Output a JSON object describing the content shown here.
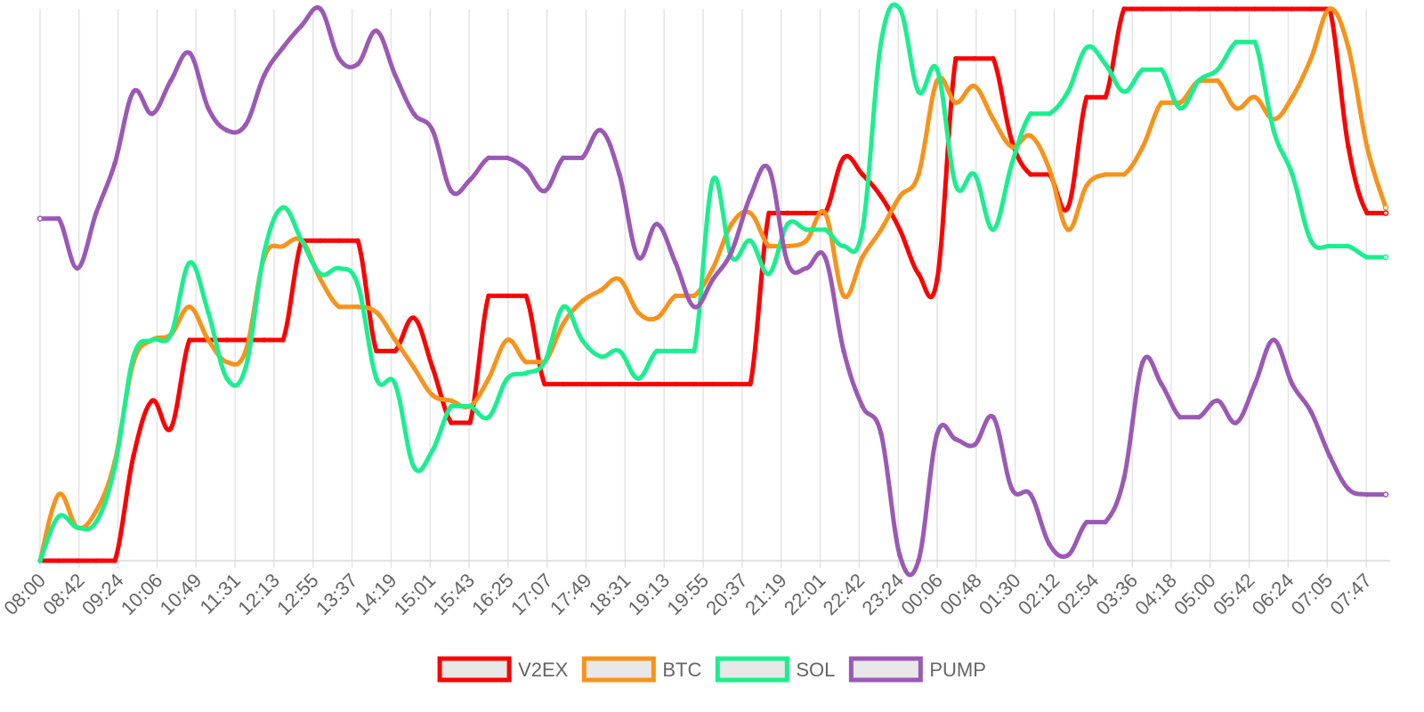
{
  "chart_data": {
    "type": "line",
    "title": "",
    "xlabel": "",
    "ylabel": "",
    "grid": true,
    "y_axis_visible": false,
    "legend_position": "bottom",
    "x_labels_shown": [
      "08:00",
      "08:42",
      "09:24",
      "10:06",
      "10:49",
      "11:31",
      "12:13",
      "12:55",
      "13:37",
      "14:19",
      "15:01",
      "15:43",
      "16:25",
      "17:07",
      "17:49",
      "18:31",
      "19:13",
      "19:55",
      "20:37",
      "21:19",
      "22:01",
      "22:42",
      "23:24",
      "00:06",
      "00:48",
      "01:30",
      "02:12",
      "02:54",
      "03:36",
      "04:18",
      "05:00",
      "05:42",
      "06:24",
      "07:05",
      "07:47"
    ],
    "ylim": [
      0,
      100
    ],
    "series": [
      {
        "name": "V2EX",
        "color": "#ff0000",
        "values": [
          0,
          0,
          0,
          0,
          0,
          19,
          29,
          24,
          40,
          40,
          40,
          40,
          40,
          40,
          58,
          58,
          58,
          58,
          38,
          38,
          44,
          35,
          25,
          25,
          48,
          48,
          48,
          32,
          32,
          32,
          32,
          32,
          32,
          32,
          32,
          32,
          32,
          32,
          32,
          63,
          63,
          63,
          63,
          73,
          70,
          66,
          60,
          52,
          51,
          91,
          91,
          91,
          76,
          70,
          70,
          64,
          84,
          84,
          100,
          100,
          100,
          100,
          100,
          100,
          100,
          100,
          100,
          100,
          100,
          100,
          75,
          63,
          63
        ]
      },
      {
        "name": "BTC",
        "color": "#f7931a",
        "values": [
          0,
          12,
          6,
          9,
          18,
          36,
          40,
          41,
          46,
          40,
          36,
          38,
          55,
          57,
          58,
          51,
          46,
          46,
          45,
          40,
          35,
          30,
          29,
          28,
          33,
          40,
          36,
          36,
          43,
          47,
          49,
          51,
          45,
          44,
          48,
          48,
          53,
          61,
          63,
          57,
          57,
          58,
          63,
          48,
          55,
          60,
          66,
          70,
          87,
          83,
          86,
          80,
          75,
          77,
          71,
          60,
          68,
          70,
          70,
          75,
          83,
          83,
          87,
          87,
          82,
          84,
          80,
          84,
          91,
          100,
          93,
          75,
          64
        ]
      },
      {
        "name": "SOL",
        "color": "#1aef8f",
        "values": [
          0,
          8,
          6,
          7,
          17,
          37,
          40,
          41,
          54,
          45,
          33,
          35,
          56,
          64,
          58,
          52,
          53,
          50,
          33,
          32,
          17,
          20,
          28,
          28,
          26,
          33,
          34,
          36,
          46,
          40,
          37,
          38,
          33,
          38,
          38,
          38,
          69,
          55,
          58,
          52,
          61,
          60,
          60,
          57,
          60,
          94,
          100,
          85,
          89,
          68,
          70,
          60,
          72,
          81,
          81,
          85,
          93,
          90,
          85,
          89,
          89,
          82,
          87,
          89,
          94,
          94,
          78,
          70,
          58,
          57,
          57,
          55,
          55
        ]
      },
      {
        "name": "PUMP",
        "color": "#9b59b6",
        "values": [
          62,
          62,
          53,
          63,
          72,
          85,
          81,
          87,
          92,
          82,
          78,
          79,
          88,
          93,
          97,
          100,
          91,
          90,
          96,
          88,
          81,
          78,
          67,
          69,
          73,
          73,
          71,
          67,
          73,
          73,
          78,
          70,
          55,
          61,
          54,
          46,
          51,
          56,
          66,
          71,
          54,
          53,
          55,
          38,
          28,
          23,
          1,
          0,
          23,
          22,
          21,
          26,
          13,
          12,
          3,
          1,
          7,
          7,
          15,
          36,
          32,
          26,
          26,
          29,
          25,
          32,
          40,
          32,
          27,
          19,
          13,
          12,
          12
        ]
      }
    ]
  }
}
